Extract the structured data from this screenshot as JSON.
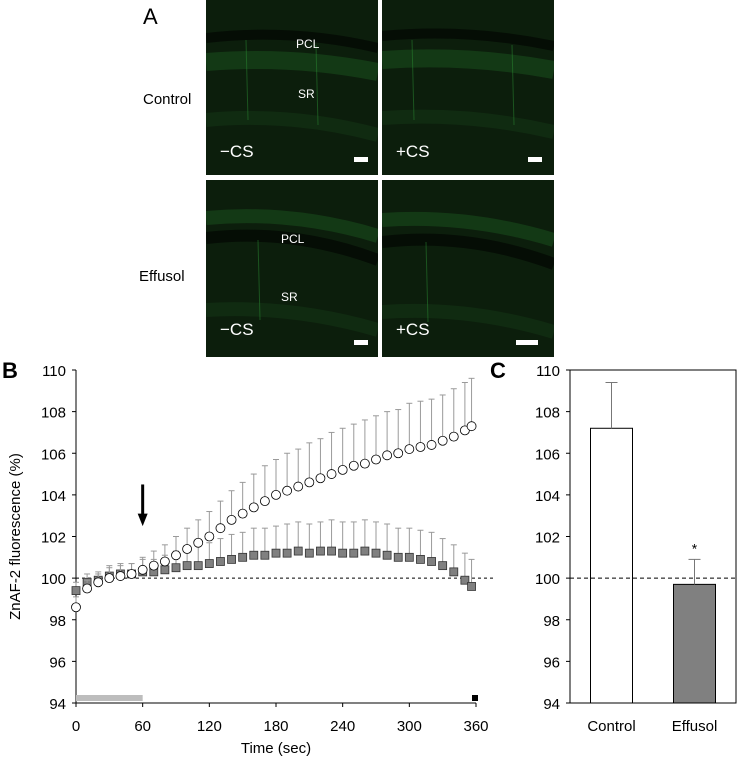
{
  "panel_labels": {
    "a": "A",
    "b": "B",
    "c": "C"
  },
  "panel_a": {
    "row_labels": [
      "Control",
      "Effusol"
    ],
    "layer_labels": {
      "pcl": "PCL",
      "sr": "SR"
    },
    "condition_labels": [
      "−CS",
      "+CS"
    ],
    "colors": {
      "fluorescence": "#1f8a2a",
      "background": "#0a1a0a"
    }
  },
  "chart_data": [
    {
      "panel": "B",
      "type": "scatter",
      "xlabel": "Time (sec)",
      "ylabel": "ZnAF-2 fluorescence (%)",
      "xlim": [
        0,
        360
      ],
      "ylim": [
        94,
        110
      ],
      "xticks": [
        0,
        60,
        120,
        180,
        240,
        300,
        360
      ],
      "yticks": [
        94,
        96,
        98,
        100,
        102,
        104,
        106,
        108,
        110
      ],
      "baseline": 100,
      "stimulus_bar": {
        "x_start": 0,
        "x_end": 60,
        "color": "#bdbdbd"
      },
      "end_marker_x": 360,
      "arrow_x": 60,
      "series": [
        {
          "marker": "circle",
          "fill": "#ffffff",
          "x": [
            0,
            10,
            20,
            30,
            40,
            50,
            60,
            70,
            80,
            90,
            100,
            110,
            120,
            130,
            140,
            150,
            160,
            170,
            180,
            190,
            200,
            210,
            220,
            230,
            240,
            250,
            260,
            270,
            280,
            290,
            300,
            310,
            320,
            330,
            340,
            350,
            356
          ],
          "y": [
            98.6,
            99.5,
            99.8,
            100.0,
            100.1,
            100.2,
            100.4,
            100.6,
            100.8,
            101.1,
            101.4,
            101.7,
            102.0,
            102.4,
            102.8,
            103.1,
            103.4,
            103.7,
            104.0,
            104.2,
            104.4,
            104.6,
            104.8,
            105.0,
            105.2,
            105.4,
            105.5,
            105.7,
            105.9,
            106.0,
            106.2,
            106.3,
            106.4,
            106.6,
            106.8,
            107.1,
            107.3
          ],
          "err": [
            0.5,
            0.4,
            0.4,
            0.5,
            0.5,
            0.5,
            0.6,
            0.7,
            0.8,
            0.9,
            1.0,
            1.1,
            1.2,
            1.3,
            1.4,
            1.5,
            1.6,
            1.7,
            1.7,
            1.8,
            1.8,
            1.9,
            1.9,
            2.0,
            2.0,
            2.0,
            2.1,
            2.1,
            2.1,
            2.1,
            2.2,
            2.2,
            2.2,
            2.2,
            2.3,
            2.3,
            2.3
          ]
        },
        {
          "marker": "square",
          "fill": "#808080",
          "x": [
            0,
            10,
            20,
            30,
            40,
            50,
            60,
            70,
            80,
            90,
            100,
            110,
            120,
            130,
            140,
            150,
            160,
            170,
            180,
            190,
            200,
            210,
            220,
            230,
            240,
            250,
            260,
            270,
            280,
            290,
            300,
            310,
            320,
            330,
            340,
            350,
            356
          ],
          "y": [
            99.4,
            99.8,
            99.9,
            100.1,
            100.2,
            100.2,
            100.3,
            100.3,
            100.4,
            100.5,
            100.6,
            100.6,
            100.7,
            100.8,
            100.9,
            101.0,
            101.1,
            101.1,
            101.2,
            101.2,
            101.3,
            101.2,
            101.3,
            101.3,
            101.2,
            101.2,
            101.3,
            101.2,
            101.1,
            101.0,
            101.0,
            100.9,
            100.8,
            100.6,
            100.3,
            99.9,
            99.6
          ],
          "err": [
            0.4,
            0.4,
            0.4,
            0.5,
            0.5,
            0.5,
            0.6,
            0.6,
            0.7,
            0.8,
            0.9,
            1.0,
            1.0,
            1.1,
            1.2,
            1.2,
            1.3,
            1.3,
            1.3,
            1.4,
            1.4,
            1.4,
            1.4,
            1.5,
            1.5,
            1.5,
            1.5,
            1.5,
            1.5,
            1.4,
            1.4,
            1.4,
            1.4,
            1.3,
            1.3,
            1.3,
            1.3
          ]
        }
      ]
    },
    {
      "panel": "C",
      "type": "bar",
      "categories": [
        "Control",
        "Effusol"
      ],
      "values": [
        107.2,
        99.7
      ],
      "errors": [
        2.2,
        1.2
      ],
      "colors": [
        "#ffffff",
        "#808080"
      ],
      "ylim": [
        94,
        110
      ],
      "yticks": [
        94,
        96,
        98,
        100,
        102,
        104,
        106,
        108,
        110
      ],
      "baseline": 100,
      "annotation": {
        "category": "Effusol",
        "text": "*"
      }
    }
  ]
}
